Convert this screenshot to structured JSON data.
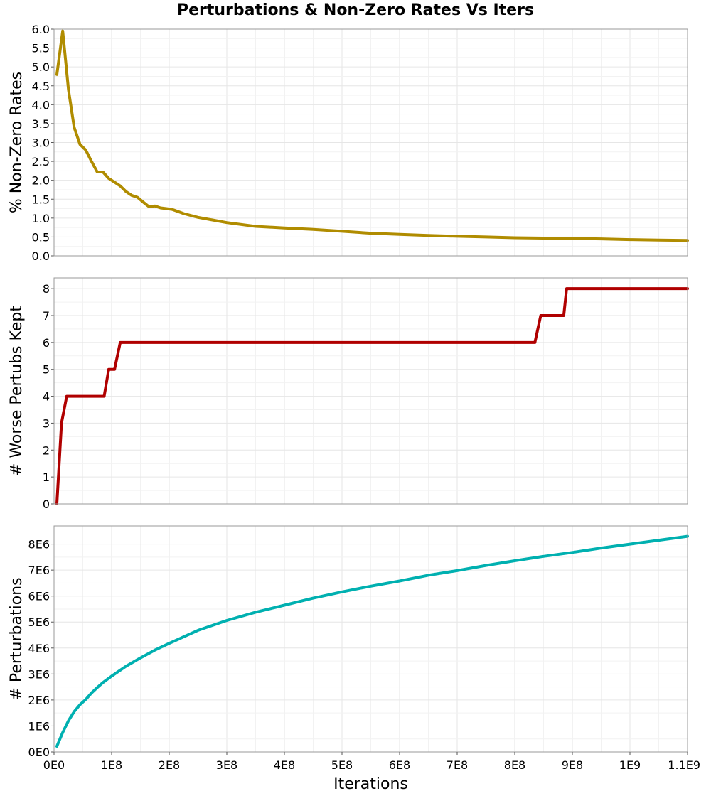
{
  "figure_title": "Perturbations & Non-Zero Rates Vs Iters",
  "chart_data": [
    {
      "type": "line",
      "title": "",
      "ylabel": "% Non-Zero Rates",
      "xlabel": "",
      "xlim": [
        0,
        1100000000.0
      ],
      "ylim": [
        0,
        6.0
      ],
      "yticks": [
        "0.0",
        "0.5",
        "1.0",
        "1.5",
        "2.0",
        "2.5",
        "3.0",
        "3.5",
        "4.0",
        "4.5",
        "5.0",
        "5.5",
        "6.0"
      ],
      "ytick_values": [
        0,
        0.5,
        1.0,
        1.5,
        2.0,
        2.5,
        3.0,
        3.5,
        4.0,
        4.5,
        5.0,
        5.5,
        6.0
      ],
      "grid": true,
      "color": "#b08c00",
      "series": [
        {
          "x": [
            5000000.0,
            15000000.0,
            25000000.0,
            35000000.0,
            45000000.0,
            55000000.0,
            65000000.0,
            75000000.0,
            85000000.0,
            95000000.0,
            105000000.0,
            115000000.0,
            125000000.0,
            135000000.0,
            145000000.0,
            155000000.0,
            165000000.0,
            175000000.0,
            185000000.0,
            195000000.0,
            205000000.0,
            225000000.0,
            250000000.0,
            275000000.0,
            300000000.0,
            350000000.0,
            400000000.0,
            450000000.0,
            500000000.0,
            550000000.0,
            600000000.0,
            650000000.0,
            700000000.0,
            750000000.0,
            800000000.0,
            850000000.0,
            900000000.0,
            950000000.0,
            1000000000.0,
            1050000000.0,
            1100000000.0
          ],
          "y": [
            4.8,
            5.95,
            4.4,
            3.4,
            2.95,
            2.8,
            2.5,
            2.22,
            2.22,
            2.05,
            1.95,
            1.85,
            1.7,
            1.6,
            1.55,
            1.42,
            1.3,
            1.32,
            1.27,
            1.25,
            1.23,
            1.12,
            1.02,
            0.95,
            0.88,
            0.78,
            0.74,
            0.7,
            0.65,
            0.6,
            0.57,
            0.54,
            0.52,
            0.5,
            0.48,
            0.47,
            0.46,
            0.45,
            0.43,
            0.42,
            0.41
          ]
        }
      ]
    },
    {
      "type": "line",
      "title": "",
      "ylabel": "# Worse Pertubs Kept",
      "xlabel": "",
      "xlim": [
        0,
        1100000000.0
      ],
      "ylim": [
        0,
        8.4
      ],
      "yticks": [
        "0",
        "1",
        "2",
        "3",
        "4",
        "5",
        "6",
        "7",
        "8"
      ],
      "ytick_values": [
        0,
        1,
        2,
        3,
        4,
        5,
        6,
        7,
        8
      ],
      "grid": true,
      "color": "#b00000",
      "series": [
        {
          "x": [
            5000000.0,
            13000000.0,
            22000000.0,
            87000000.0,
            95000000.0,
            105000000.0,
            115000000.0,
            835000000.0,
            845000000.0,
            885000000.0,
            890000000.0,
            1100000000.0
          ],
          "y": [
            0,
            3,
            4,
            4,
            5,
            5,
            6,
            6,
            7,
            7,
            8,
            8
          ]
        }
      ]
    },
    {
      "type": "line",
      "title": "",
      "ylabel": "# Perturbations",
      "xlabel": "Iterations",
      "xlim": [
        0,
        1100000000.0
      ],
      "ylim": [
        0,
        8700000.0
      ],
      "yticks": [
        "0E0",
        "1E6",
        "2E6",
        "3E6",
        "4E6",
        "5E6",
        "6E6",
        "7E6",
        "8E6"
      ],
      "ytick_values": [
        0,
        1000000.0,
        2000000.0,
        3000000.0,
        4000000.0,
        5000000.0,
        6000000.0,
        7000000.0,
        8000000.0
      ],
      "xticks": [
        "0E0",
        "1E8",
        "2E8",
        "3E8",
        "4E8",
        "5E8",
        "6E8",
        "7E8",
        "8E8",
        "9E8",
        "1E9",
        "1.1E9"
      ],
      "xtick_values": [
        0,
        100000000.0,
        200000000.0,
        300000000.0,
        400000000.0,
        500000000.0,
        600000000.0,
        700000000.0,
        800000000.0,
        900000000.0,
        1000000000.0,
        1100000000.0
      ],
      "grid": true,
      "color": "#00b0b0",
      "series": [
        {
          "x": [
            5000000.0,
            15000000.0,
            25000000.0,
            35000000.0,
            45000000.0,
            55000000.0,
            65000000.0,
            75000000.0,
            85000000.0,
            100000000.0,
            125000000.0,
            150000000.0,
            175000000.0,
            200000000.0,
            250000000.0,
            300000000.0,
            350000000.0,
            400000000.0,
            450000000.0,
            500000000.0,
            550000000.0,
            600000000.0,
            650000000.0,
            700000000.0,
            750000000.0,
            800000000.0,
            850000000.0,
            900000000.0,
            950000000.0,
            1000000000.0,
            1050000000.0,
            1100000000.0
          ],
          "y": [
            220000.0,
            750000.0,
            1200000.0,
            1550000.0,
            1820000.0,
            2020000.0,
            2270000.0,
            2480000.0,
            2670000.0,
            2920000.0,
            3300000.0,
            3620000.0,
            3920000.0,
            4180000.0,
            4680000.0,
            5060000.0,
            5380000.0,
            5650000.0,
            5920000.0,
            6160000.0,
            6380000.0,
            6580000.0,
            6800000.0,
            6980000.0,
            7180000.0,
            7360000.0,
            7530000.0,
            7680000.0,
            7850000.0,
            8000000.0,
            8150000.0,
            8300000.0
          ]
        }
      ]
    }
  ]
}
